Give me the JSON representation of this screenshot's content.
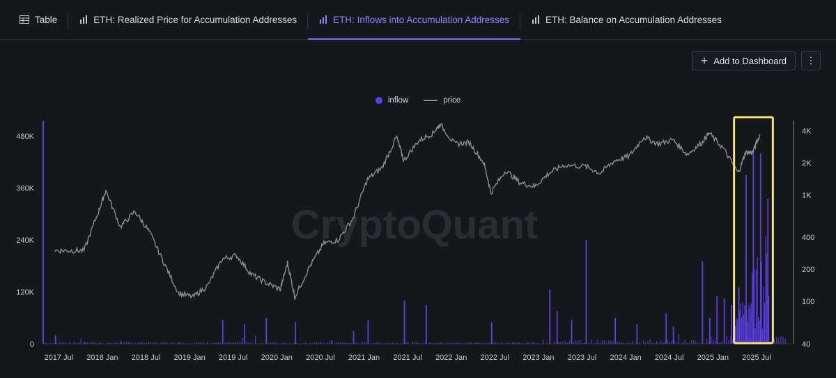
{
  "tabs": [
    {
      "label": "Table",
      "icon": "table-icon"
    },
    {
      "label": "ETH: Realized Price for Accumulation Addresses",
      "icon": "bar-chart-icon"
    },
    {
      "label": "ETH: Inflows into Accumulation Addresses",
      "icon": "bar-chart-icon",
      "active": true
    },
    {
      "label": "ETH: Balance on Accumulation Addresses",
      "icon": "bar-chart-icon"
    }
  ],
  "toolbar": {
    "add_label": "Add to Dashboard",
    "more_label": "⋮"
  },
  "legend": {
    "inflow": "inflow",
    "price": "price"
  },
  "watermark": "CryptoQuant",
  "colors": {
    "background": "#16171b",
    "inflow": "#5a3fe6",
    "price": "#8c8d93",
    "highlight": "#f2df7f",
    "accent": "#7a6cff"
  },
  "chart_data": {
    "type": "bar",
    "x": [
      "2017 Jul",
      "2018 Jan",
      "2018 Jul",
      "2019 Jan",
      "2019 Jul",
      "2020 Jan",
      "2020 Jul",
      "2021 Jan",
      "2021 Jul",
      "2022 Jan",
      "2022 Jul",
      "2023 Jan",
      "2023 Jul",
      "2024 Jan",
      "2024 Jul",
      "2025 Jan",
      "2025 Jul"
    ],
    "left_axis": {
      "ticks": [
        "0",
        "120K",
        "240K",
        "360K",
        "480K"
      ],
      "ylim": [
        0,
        520000
      ]
    },
    "right_axis": {
      "scale": "log",
      "ticks": [
        "40",
        "100",
        "200",
        "400",
        "1K",
        "2K",
        "4K"
      ]
    },
    "series": [
      {
        "name": "inflow",
        "type": "bar",
        "axis": "left",
        "spikes": [
          [
            "2017-06",
            20000
          ],
          [
            "2017-10",
            5000
          ],
          [
            "2018-03",
            6000
          ],
          [
            "2018-11",
            4000
          ],
          [
            "2019-05",
            55000
          ],
          [
            "2019-08",
            45000
          ],
          [
            "2019-11",
            60000
          ],
          [
            "2020-03",
            50000
          ],
          [
            "2020-08",
            8000
          ],
          [
            "2020-11",
            30000
          ],
          [
            "2021-01",
            55000
          ],
          [
            "2021-06",
            100000
          ],
          [
            "2021-09",
            90000
          ],
          [
            "2022-06",
            50000
          ],
          [
            "2023-02",
            125000
          ],
          [
            "2023-03",
            75000
          ],
          [
            "2023-05",
            55000
          ],
          [
            "2023-07",
            240000
          ],
          [
            "2023-11",
            60000
          ],
          [
            "2024-02",
            45000
          ],
          [
            "2024-06",
            70000
          ],
          [
            "2024-07",
            40000
          ],
          [
            "2024-11",
            190000
          ],
          [
            "2024-12",
            60000
          ],
          [
            "2025-01",
            110000
          ],
          [
            "2025-02",
            105000
          ],
          [
            "2025-03",
            90000
          ],
          [
            "2025-04",
            130000
          ],
          [
            "2025-05",
            390000
          ],
          [
            "2025-06",
            445000
          ],
          [
            "2025-07",
            440000
          ],
          [
            "2025-08",
            335000
          ]
        ]
      },
      {
        "name": "price",
        "type": "line",
        "axis": "right",
        "points": [
          [
            "2017-06",
            300
          ],
          [
            "2017-08",
            300
          ],
          [
            "2017-10",
            300
          ],
          [
            "2017-12",
            700
          ],
          [
            "2018-01",
            1100
          ],
          [
            "2018-03",
            500
          ],
          [
            "2018-05",
            700
          ],
          [
            "2018-07",
            450
          ],
          [
            "2018-09",
            230
          ],
          [
            "2018-11",
            120
          ],
          [
            "2019-01",
            110
          ],
          [
            "2019-03",
            140
          ],
          [
            "2019-05",
            250
          ],
          [
            "2019-07",
            270
          ],
          [
            "2019-09",
            180
          ],
          [
            "2019-11",
            150
          ],
          [
            "2020-01",
            130
          ],
          [
            "2020-02",
            230
          ],
          [
            "2020-03",
            110
          ],
          [
            "2020-05",
            210
          ],
          [
            "2020-07",
            350
          ],
          [
            "2020-09",
            380
          ],
          [
            "2020-11",
            600
          ],
          [
            "2021-01",
            1400
          ],
          [
            "2021-03",
            1800
          ],
          [
            "2021-05",
            3500
          ],
          [
            "2021-06",
            2100
          ],
          [
            "2021-08",
            3200
          ],
          [
            "2021-10",
            3800
          ],
          [
            "2021-11",
            4600
          ],
          [
            "2022-01",
            3000
          ],
          [
            "2022-03",
            3100
          ],
          [
            "2022-05",
            2000
          ],
          [
            "2022-06",
            1050
          ],
          [
            "2022-08",
            1700
          ],
          [
            "2022-10",
            1300
          ],
          [
            "2022-12",
            1200
          ],
          [
            "2023-02",
            1600
          ],
          [
            "2023-04",
            1900
          ],
          [
            "2023-07",
            1850
          ],
          [
            "2023-09",
            1600
          ],
          [
            "2023-11",
            2100
          ],
          [
            "2024-01",
            2300
          ],
          [
            "2024-03",
            3500
          ],
          [
            "2024-05",
            3000
          ],
          [
            "2024-07",
            3300
          ],
          [
            "2024-09",
            2400
          ],
          [
            "2024-11",
            3100
          ],
          [
            "2024-12",
            3800
          ],
          [
            "2025-02",
            2700
          ],
          [
            "2025-04",
            1600
          ],
          [
            "2025-05",
            2500
          ],
          [
            "2025-06",
            2500
          ],
          [
            "2025-07",
            3700
          ]
        ]
      }
    ],
    "annotation": {
      "type": "highlight-box",
      "color": "#f2df7f",
      "range": [
        "2025-04",
        "2025-08"
      ]
    }
  }
}
